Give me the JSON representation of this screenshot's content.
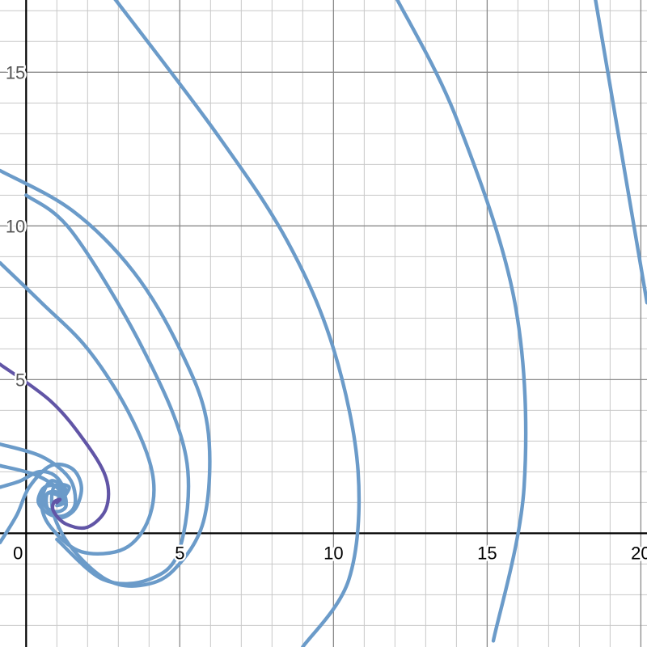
{
  "chart_data": {
    "type": "line",
    "title": "",
    "xlabel": "",
    "ylabel": "",
    "xlim": [
      -0.85,
      20.2
    ],
    "ylim": [
      -3.7,
      17.35
    ],
    "grid": true,
    "minor_grid_step": 1,
    "major_grid_step": 5,
    "x_ticks": [
      {
        "value": 0,
        "label": "0"
      },
      {
        "value": 5,
        "label": "5"
      },
      {
        "value": 10,
        "label": "10"
      },
      {
        "value": 15,
        "label": "15"
      },
      {
        "value": 20,
        "label": "20"
      }
    ],
    "y_ticks": [
      {
        "value": 5,
        "label": "5"
      },
      {
        "value": 10,
        "label": "10"
      },
      {
        "value": 15,
        "label": "15"
      }
    ],
    "spiral_center": [
      1.0,
      1.0
    ],
    "colors": {
      "trajectory": "#6b9bc9",
      "highlight": "#6155a6",
      "grid_minor": "#c8c8c8",
      "grid_major": "#8a8a8a",
      "axis": "#000000"
    },
    "series": [
      {
        "kind": "trajectory",
        "points": [
          [
            12.0,
            17.5
          ],
          [
            14.0,
            13.5
          ],
          [
            15.9,
            7.5
          ],
          [
            16.2,
            1.5
          ],
          [
            15.2,
            -3.5
          ]
        ]
      },
      {
        "kind": "trajectory",
        "points": [
          [
            18.5,
            17.5
          ],
          [
            20.2,
            7.5
          ]
        ]
      },
      {
        "kind": "trajectory",
        "points": [
          [
            2.8,
            17.5
          ],
          [
            6.2,
            13.0
          ],
          [
            8.5,
            9.5
          ],
          [
            10.0,
            6.0
          ],
          [
            10.8,
            2.0
          ],
          [
            10.5,
            -1.5
          ],
          [
            9.0,
            -3.7
          ]
        ]
      },
      {
        "kind": "trajectory",
        "points": [
          [
            -0.85,
            11.8
          ],
          [
            1.5,
            10.5
          ],
          [
            3.5,
            8.5
          ],
          [
            5.0,
            6.0
          ],
          [
            5.9,
            3.5
          ],
          [
            5.8,
            0.5
          ],
          [
            4.8,
            -1.2
          ],
          [
            3.7,
            -1.7
          ],
          [
            2.6,
            -1.5
          ],
          [
            1.5,
            -0.5
          ],
          [
            0.9,
            0.6
          ],
          [
            0.9,
            1.5
          ],
          [
            1.4,
            1.5
          ],
          [
            1.1,
            1.0
          ]
        ]
      },
      {
        "kind": "trajectory",
        "points": [
          [
            0.0,
            11.0
          ],
          [
            1.5,
            9.8
          ],
          [
            3.8,
            6.0
          ],
          [
            5.2,
            2.5
          ],
          [
            5.0,
            -0.5
          ],
          [
            4.0,
            -1.5
          ],
          [
            2.5,
            -1.5
          ],
          [
            1.0,
            -0.2
          ]
        ]
      },
      {
        "kind": "trajectory",
        "points": [
          [
            -0.85,
            8.8
          ],
          [
            0.5,
            7.5
          ],
          [
            2.0,
            6.0
          ],
          [
            3.3,
            4.0
          ],
          [
            4.1,
            2.0
          ],
          [
            4.0,
            0.5
          ],
          [
            3.2,
            -0.5
          ],
          [
            1.8,
            -0.6
          ],
          [
            0.8,
            0.2
          ],
          [
            0.5,
            1.0
          ],
          [
            0.8,
            1.7
          ],
          [
            1.3,
            1.4
          ],
          [
            1.0,
            1.0
          ]
        ]
      },
      {
        "kind": "trajectory",
        "points": [
          [
            -0.85,
            2.9
          ],
          [
            0.5,
            2.5
          ],
          [
            1.4,
            1.8
          ],
          [
            1.6,
            1.0
          ],
          [
            1.3,
            0.6
          ],
          [
            0.8,
            0.6
          ],
          [
            0.4,
            1.0
          ],
          [
            0.6,
            1.5
          ],
          [
            1.1,
            1.5
          ],
          [
            1.3,
            1.0
          ],
          [
            1.0,
            1.0
          ]
        ]
      },
      {
        "kind": "trajectory",
        "points": [
          [
            -0.85,
            2.2
          ],
          [
            0.3,
            1.9
          ],
          [
            1.1,
            1.4
          ],
          [
            1.3,
            0.9
          ],
          [
            1.0,
            0.7
          ],
          [
            0.6,
            0.9
          ],
          [
            0.7,
            1.3
          ],
          [
            1.1,
            1.2
          ],
          [
            1.0,
            1.0
          ]
        ]
      },
      {
        "kind": "trajectory",
        "points": [
          [
            -0.85,
            -0.3
          ],
          [
            -0.3,
            0.6
          ],
          [
            0.1,
            1.5
          ],
          [
            0.8,
            2.2
          ],
          [
            1.5,
            2.1
          ],
          [
            1.8,
            1.5
          ],
          [
            1.6,
            0.8
          ],
          [
            1.1,
            0.5
          ],
          [
            0.7,
            0.8
          ],
          [
            0.7,
            1.3
          ],
          [
            1.1,
            1.3
          ],
          [
            1.0,
            1.0
          ]
        ]
      },
      {
        "kind": "trajectory",
        "points": [
          [
            -0.85,
            1.5
          ],
          [
            -0.2,
            1.7
          ],
          [
            0.4,
            2.0
          ],
          [
            0.9,
            1.9
          ],
          [
            1.2,
            1.5
          ],
          [
            1.2,
            1.0
          ],
          [
            1.0,
            0.9
          ]
        ]
      },
      {
        "kind": "highlight",
        "points": [
          [
            -0.85,
            5.5
          ],
          [
            0.8,
            4.3
          ],
          [
            1.9,
            3.0
          ],
          [
            2.6,
            1.8
          ],
          [
            2.6,
            0.8
          ],
          [
            2.0,
            0.2
          ],
          [
            1.3,
            0.3
          ],
          [
            0.9,
            0.7
          ],
          [
            0.9,
            1.0
          ],
          [
            1.1,
            1.1
          ],
          [
            1.0,
            1.0
          ]
        ]
      }
    ]
  }
}
